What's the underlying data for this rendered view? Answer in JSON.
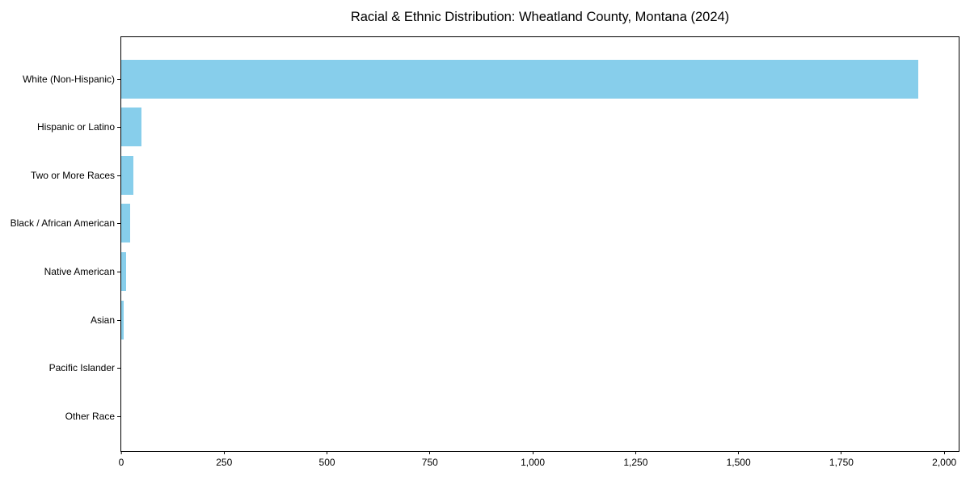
{
  "colors": {
    "bar": "#87CEEB",
    "axis": "#000000",
    "background": "#FFFFFF",
    "text": "#000000"
  },
  "chart_data": {
    "type": "bar",
    "orientation": "horizontal",
    "title": "Racial & Ethnic Distribution: Wheatland County, Montana (2024)",
    "xlabel": "",
    "ylabel": "",
    "categories": [
      "White (Non-Hispanic)",
      "Hispanic or Latino",
      "Two or More Races",
      "Black / African American",
      "Native American",
      "Asian",
      "Pacific Islander",
      "Other Race"
    ],
    "values": [
      1937,
      50,
      29,
      21,
      12,
      6,
      0,
      0
    ],
    "xlim": [
      0,
      2035
    ],
    "xticks": [
      0,
      250,
      500,
      750,
      1000,
      1250,
      1500,
      1750,
      2000
    ],
    "xtick_labels": [
      "0",
      "250",
      "500",
      "750",
      "1,000",
      "1,250",
      "1,500",
      "1,750",
      "2,000"
    ],
    "bar_color": "#87CEEB",
    "grid": false,
    "legend": false
  }
}
